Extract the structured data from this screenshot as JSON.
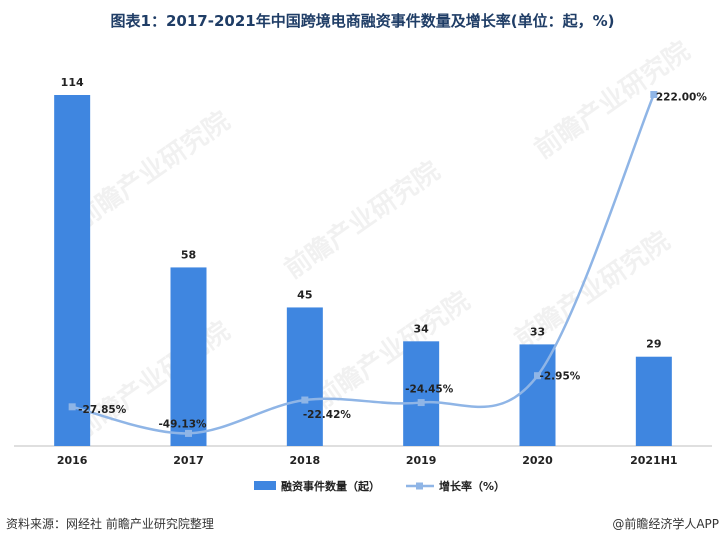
{
  "title": "图表1：2017-2021年中国跨境电商融资事件数量及增长率(单位：起，%)",
  "footer": {
    "source": "资料来源：网经社 前瞻产业研究院整理",
    "brand": "@前瞻经济学人APP"
  },
  "watermark": "前瞻产业研究院",
  "chart_data": {
    "type": "bar",
    "categories": [
      "2016",
      "2017",
      "2018",
      "2019",
      "2020",
      "2021H1"
    ],
    "series": [
      {
        "name": "融资事件数量（起）",
        "type": "bar",
        "values": [
          114,
          58,
          45,
          34,
          33,
          29
        ],
        "labels": [
          "114",
          "58",
          "45",
          "34",
          "33",
          "29"
        ],
        "color": "#3f86e0"
      },
      {
        "name": "增长率（%）",
        "type": "line",
        "values": [
          -27.85,
          -49.13,
          -22.42,
          -24.45,
          -2.95,
          222.0
        ],
        "labels": [
          "-27.85%",
          "-49.13%",
          "-22.42%",
          "-24.45%",
          "-2.95%",
          "222.00%"
        ],
        "color": "#8fb5e6"
      }
    ],
    "ylim_left": [
      0,
      114
    ],
    "ylim_right": [
      -60,
      240
    ],
    "legend_position": "bottom"
  }
}
